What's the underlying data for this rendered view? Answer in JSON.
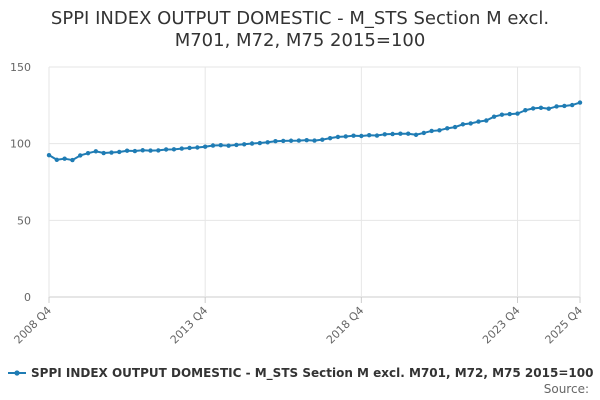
{
  "chart_data": {
    "type": "line",
    "title_lines": [
      "SPPI INDEX OUTPUT DOMESTIC - M_STS Section M excl.",
      "M701, M72, M75 2015=100"
    ],
    "xlabel": "",
    "ylabel": "",
    "ylim": [
      0,
      150
    ],
    "yticks": [
      0,
      50,
      100,
      150
    ],
    "x_tick_labels": [
      "2008 Q4",
      "2013 Q4",
      "2018 Q4",
      "2023 Q4",
      "2025 Q4"
    ],
    "x_tick_indices": [
      0,
      20,
      40,
      60,
      68
    ],
    "grid": true,
    "legend_position": "bottom",
    "series": [
      {
        "name": "SPPI INDEX OUTPUT DOMESTIC - M_STS Section M excl. M701, M72, M75 2015=100",
        "color": "#1f7cb4",
        "categories": [
          "2008 Q4",
          "2009 Q1",
          "2009 Q2",
          "2009 Q3",
          "2009 Q4",
          "2010 Q1",
          "2010 Q2",
          "2010 Q3",
          "2010 Q4",
          "2011 Q1",
          "2011 Q2",
          "2011 Q3",
          "2011 Q4",
          "2012 Q1",
          "2012 Q2",
          "2012 Q3",
          "2012 Q4",
          "2013 Q1",
          "2013 Q2",
          "2013 Q3",
          "2013 Q4",
          "2014 Q1",
          "2014 Q2",
          "2014 Q3",
          "2014 Q4",
          "2015 Q1",
          "2015 Q2",
          "2015 Q3",
          "2015 Q4",
          "2016 Q1",
          "2016 Q2",
          "2016 Q3",
          "2016 Q4",
          "2017 Q1",
          "2017 Q2",
          "2017 Q3",
          "2017 Q4",
          "2018 Q1",
          "2018 Q2",
          "2018 Q3",
          "2018 Q4",
          "2019 Q1",
          "2019 Q2",
          "2019 Q3",
          "2019 Q4",
          "2020 Q1",
          "2020 Q2",
          "2020 Q3",
          "2020 Q4",
          "2021 Q1",
          "2021 Q2",
          "2021 Q3",
          "2021 Q4",
          "2022 Q1",
          "2022 Q2",
          "2022 Q3",
          "2022 Q4",
          "2023 Q1",
          "2023 Q2",
          "2023 Q3",
          "2023 Q4",
          "2024 Q1",
          "2024 Q2",
          "2024 Q3",
          "2024 Q4",
          "2025 Q1",
          "2025 Q2",
          "2025 Q3",
          "2025 Q4"
        ],
        "values": [
          92.5,
          89.5,
          90.2,
          89.3,
          92.3,
          93.8,
          95.0,
          93.9,
          94.2,
          94.6,
          95.4,
          95.2,
          95.7,
          95.5,
          95.6,
          96.2,
          96.3,
          96.8,
          97.2,
          97.5,
          98.0,
          98.8,
          99.0,
          98.7,
          99.2,
          99.6,
          100.1,
          100.4,
          100.9,
          101.6,
          101.8,
          101.9,
          102.0,
          102.3,
          102.0,
          102.6,
          103.6,
          104.4,
          104.7,
          105.2,
          105.0,
          105.5,
          105.3,
          106.1,
          106.3,
          106.5,
          106.5,
          105.8,
          107.0,
          108.3,
          108.7,
          110.0,
          110.8,
          112.6,
          113.2,
          114.4,
          115.1,
          117.6,
          118.9,
          119.3,
          119.6,
          121.8,
          123.0,
          123.4,
          122.8,
          124.3,
          124.6,
          125.2,
          126.8
        ]
      }
    ],
    "source_label": "Source:"
  }
}
